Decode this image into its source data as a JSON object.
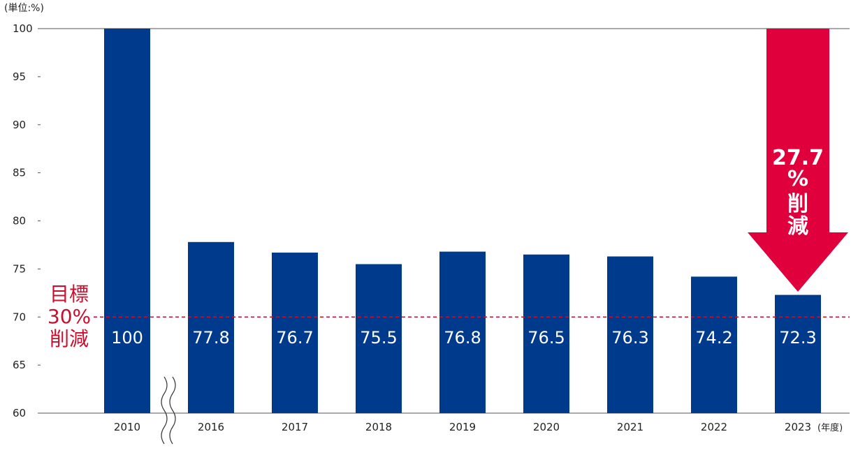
{
  "chart_data": {
    "type": "bar",
    "unit_label": "(単位:%)",
    "x_unit_label": "(年度)",
    "categories": [
      "2010",
      "2016",
      "2017",
      "2018",
      "2019",
      "2020",
      "2021",
      "2022",
      "2023"
    ],
    "values": [
      100,
      77.8,
      76.7,
      75.5,
      76.8,
      76.5,
      76.3,
      74.2,
      72.3
    ],
    "value_labels": [
      "100",
      "77.8",
      "76.7",
      "75.5",
      "76.8",
      "76.5",
      "76.3",
      "74.2",
      "72.3"
    ],
    "ylim": [
      60,
      100
    ],
    "yticks": [
      60,
      65,
      70,
      75,
      80,
      85,
      90,
      95,
      100
    ],
    "grid": false,
    "axis_break_after": "2010",
    "target_line": {
      "value": 70,
      "label_lines": [
        "目標",
        "30%",
        "削減"
      ]
    },
    "arrow_annotation": {
      "lines": [
        "27.7",
        "%",
        "削",
        "減"
      ]
    }
  },
  "colors": {
    "bar": "#003a8c",
    "bar_label": "#ffffff",
    "target": "#c8102e",
    "arrow": "#e0003c",
    "arrow_text": "#ffffff",
    "axis": "#555555",
    "tick_text": "#222222",
    "break_mark": "#333333"
  }
}
